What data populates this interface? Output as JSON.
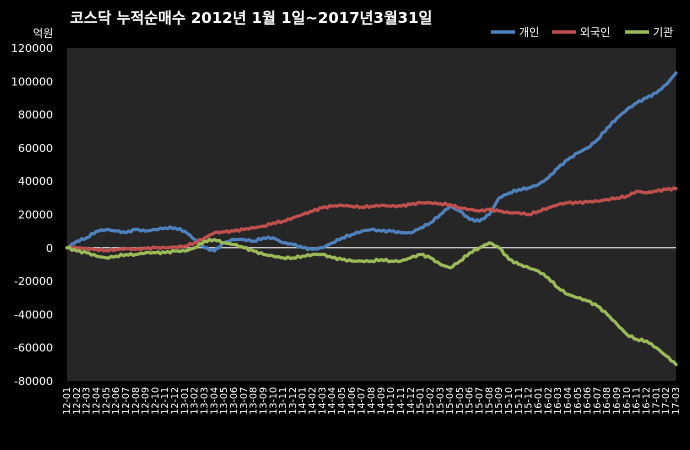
{
  "chart_data": {
    "type": "line",
    "title": "코스닥 누적순매수 2012년 1월 1일~2017년3월31일",
    "ylabel": "억원",
    "ylim": [
      -80000,
      120000
    ],
    "yticks": [
      120000,
      100000,
      80000,
      60000,
      40000,
      20000,
      0,
      -20000,
      -40000,
      -60000,
      -80000
    ],
    "legend_position": "top-right",
    "grid": false,
    "colors": {
      "background": "#000000",
      "plot_background": "#262626",
      "text": "#ffffff",
      "zero_line": "#ffffff"
    },
    "categories": [
      "12-01",
      "12-02",
      "12-03",
      "12-04",
      "12-05",
      "12-06",
      "12-07",
      "12-08",
      "12-09",
      "12-10",
      "12-11",
      "12-12",
      "13-01",
      "13-02",
      "13-03",
      "13-04",
      "13-05",
      "13-06",
      "13-07",
      "13-08",
      "13-09",
      "13-10",
      "13-11",
      "13-12",
      "14-01",
      "14-02",
      "14-03",
      "14-04",
      "14-05",
      "14-06",
      "14-07",
      "14-08",
      "14-09",
      "14-10",
      "14-11",
      "14-12",
      "15-01",
      "15-02",
      "15-03",
      "15-04",
      "15-05",
      "15-06",
      "15-07",
      "15-08",
      "15-09",
      "15-10",
      "15-11",
      "15-12",
      "16-01",
      "16-02",
      "16-03",
      "16-04",
      "16-05",
      "16-06",
      "16-07",
      "16-08",
      "16-09",
      "16-10",
      "16-11",
      "16-12",
      "17-01",
      "17-02",
      "17-03"
    ],
    "series": [
      {
        "name": "개인",
        "color": "#4f81bd",
        "values": [
          0,
          4000,
          6000,
          10000,
          11000,
          10000,
          9000,
          11000,
          10000,
          11000,
          12000,
          12000,
          10000,
          5000,
          0,
          -2000,
          3000,
          5000,
          5000,
          4000,
          6000,
          6000,
          3000,
          2000,
          0,
          -1000,
          0,
          3000,
          6000,
          8000,
          10000,
          11000,
          10000,
          10000,
          9000,
          9000,
          12000,
          15000,
          20000,
          25000,
          22000,
          17000,
          16000,
          20000,
          30000,
          33000,
          35000,
          36000,
          38000,
          42000,
          48000,
          53000,
          57000,
          60000,
          65000,
          72000,
          78000,
          83000,
          87000,
          90000,
          93000,
          98000,
          105000
        ]
      },
      {
        "name": "외국인",
        "color": "#c0504d",
        "values": [
          0,
          0,
          -500,
          -1000,
          -1500,
          -1000,
          -500,
          -1000,
          -500,
          0,
          0,
          500,
          1000,
          3000,
          6000,
          9000,
          9500,
          10000,
          11000,
          12000,
          13000,
          15000,
          16000,
          18000,
          20000,
          22000,
          24000,
          25000,
          25500,
          25000,
          24500,
          25000,
          25500,
          25000,
          25000,
          26000,
          27000,
          27000,
          26500,
          26000,
          24000,
          23000,
          22000,
          23000,
          22000,
          21000,
          21000,
          20000,
          22000,
          24000,
          26000,
          27000,
          27000,
          27500,
          28000,
          29000,
          30000,
          31000,
          34000,
          33000,
          34000,
          35000,
          35500
        ]
      },
      {
        "name": "기관",
        "color": "#9bbb59",
        "values": [
          0,
          -2000,
          -3000,
          -5000,
          -6000,
          -5000,
          -4000,
          -4000,
          -3000,
          -3000,
          -3000,
          -2000,
          -2000,
          0,
          4000,
          5000,
          3000,
          2000,
          0,
          -2000,
          -4000,
          -5000,
          -6000,
          -6000,
          -5000,
          -4000,
          -4000,
          -6000,
          -7000,
          -8000,
          -8000,
          -8000,
          -7000,
          -8000,
          -8000,
          -6000,
          -4000,
          -6000,
          -10000,
          -12000,
          -8000,
          -3000,
          0,
          3000,
          0,
          -7000,
          -10000,
          -12000,
          -14000,
          -18000,
          -24000,
          -28000,
          -30000,
          -32000,
          -35000,
          -40000,
          -46000,
          -52000,
          -55000,
          -56000,
          -60000,
          -65000,
          -70000
        ]
      }
    ]
  }
}
